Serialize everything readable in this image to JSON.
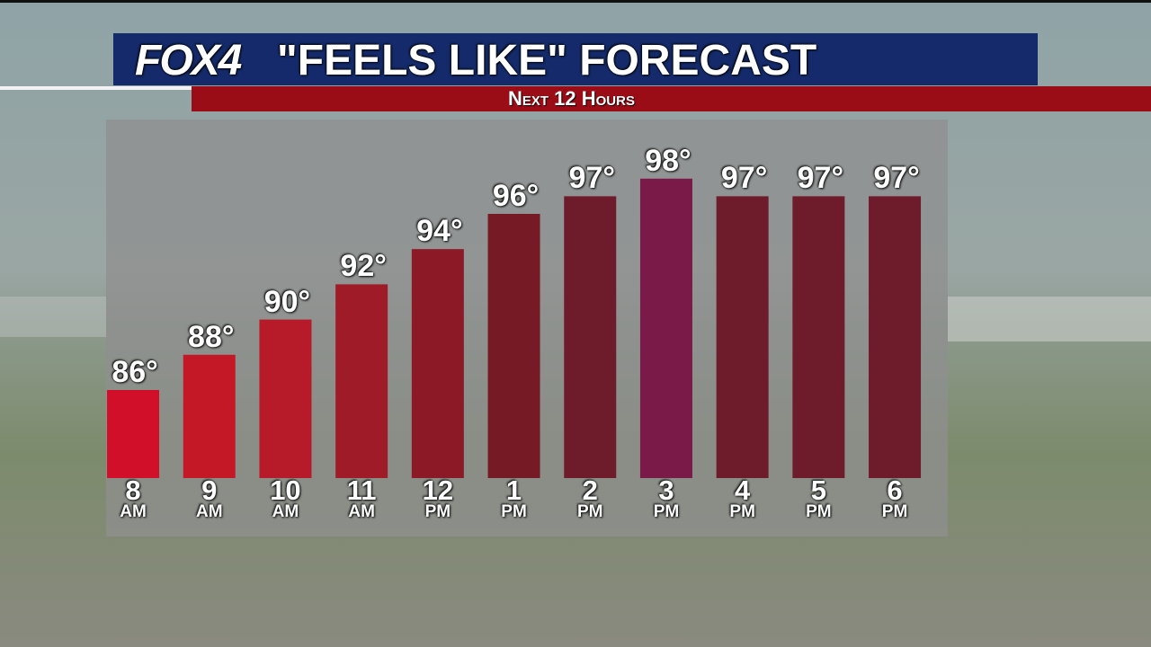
{
  "chart_data": {
    "type": "bar",
    "logo": "FOX4",
    "title": "\"FEELS LIKE\" FORECAST",
    "subtitle": "Next 12 Hours",
    "categories": [
      "8\nAM",
      "9\nAM",
      "10\nAM",
      "11\nAM",
      "12\nPM",
      "1\nPM",
      "2\nPM",
      "3\nPM",
      "4\nPM",
      "5\nPM",
      "6\nPM"
    ],
    "values": [
      86,
      88,
      90,
      92,
      94,
      96,
      97,
      98,
      97,
      97,
      97
    ],
    "value_labels": [
      "86°",
      "88°",
      "90°",
      "92°",
      "94°",
      "96°",
      "97°",
      "98°",
      "97°",
      "97°",
      "97°"
    ],
    "colors": [
      "#d20f28",
      "#c51827",
      "#b71a28",
      "#a01b28",
      "#8b1a26",
      "#761a26",
      "#6e1b2b",
      "#7a1a48",
      "#6e1b2b",
      "#6e1b2b",
      "#6e1b2b"
    ],
    "ylim": [
      81,
      101
    ]
  }
}
